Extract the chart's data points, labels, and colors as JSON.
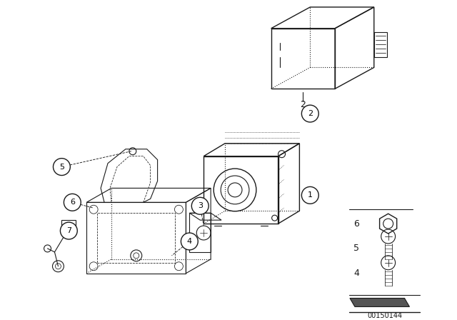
{
  "bg_color": "#ffffff",
  "line_color": "#1a1a1a",
  "fig_width": 6.4,
  "fig_height": 4.48,
  "dpi": 100,
  "catalog_num": "00150144"
}
